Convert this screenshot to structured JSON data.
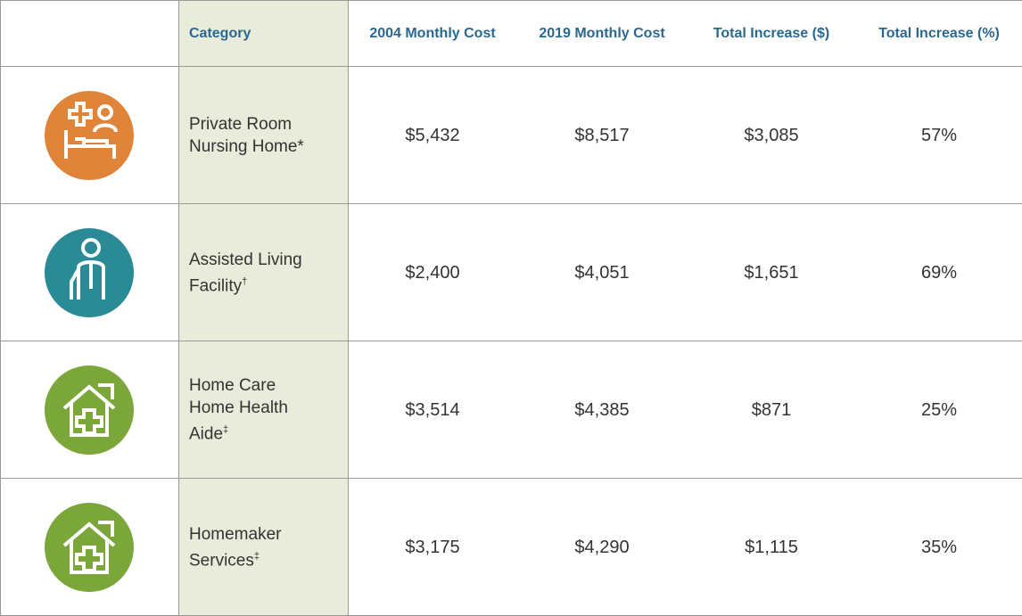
{
  "table": {
    "header": [
      "",
      "Category",
      "2004 Monthly Cost",
      "2019 Monthly Cost",
      "Total Increase ($)",
      "Total Increase (%)"
    ],
    "rows": [
      {
        "category": [
          "Private Room",
          "Nursing Home*"
        ],
        "values": [
          "$5,432",
          "$8,517",
          "$3,085",
          "57%"
        ]
      },
      {
        "category": [
          "Assisted Living",
          "Facility"
        ],
        "mark": "†",
        "values": [
          "$2,400",
          "$4,051",
          "$1,651",
          "69%"
        ]
      },
      {
        "category": [
          "Home Care",
          "Home Health",
          "Aide"
        ],
        "mark": "‡",
        "values": [
          "$3,514",
          "$4,385",
          "$871",
          "25%"
        ]
      },
      {
        "category": [
          "Homemaker",
          "Services"
        ],
        "mark": "‡",
        "values": [
          "$3,175",
          "$4,290",
          "$1,115",
          "35%"
        ]
      }
    ]
  }
}
